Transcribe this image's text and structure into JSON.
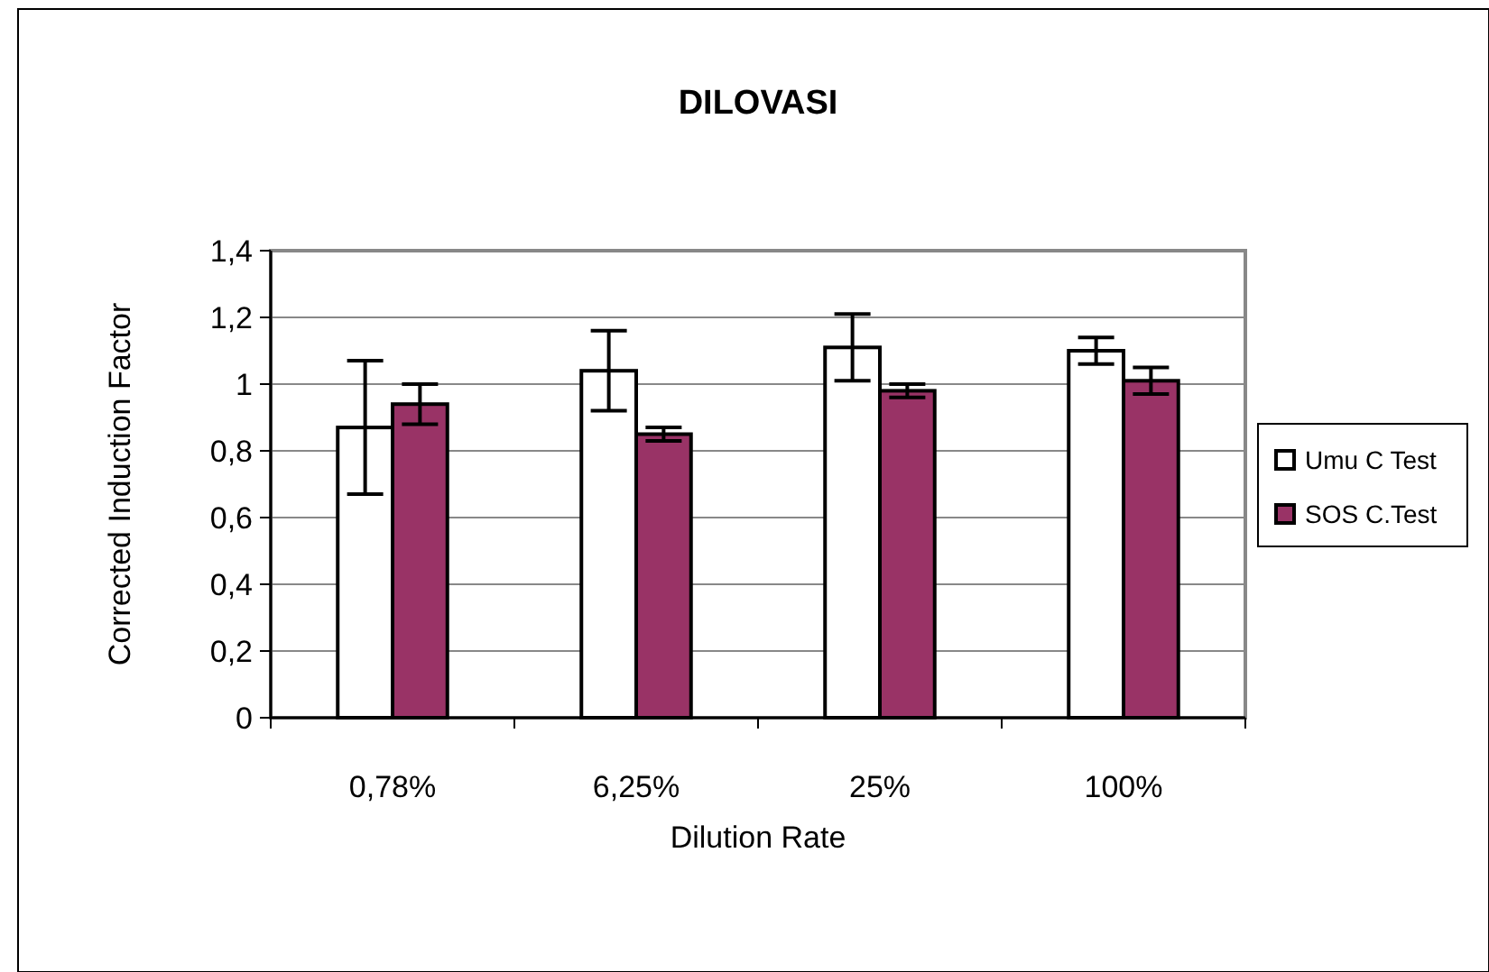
{
  "chart_data": {
    "type": "bar",
    "title": "DILOVASI",
    "xlabel": "Dilution Rate",
    "ylabel": "Corrected Induction Factor",
    "categories": [
      "0,78%",
      "6,25%",
      "25%",
      "100%"
    ],
    "series": [
      {
        "name": "Umu C Test",
        "color": "#ffffff",
        "values": [
          0.87,
          1.04,
          1.11,
          1.1
        ],
        "errors": [
          0.2,
          0.12,
          0.1,
          0.04
        ]
      },
      {
        "name": "SOS C.Test",
        "color": "#993366",
        "values": [
          0.94,
          0.85,
          0.98,
          1.01
        ],
        "errors": [
          0.06,
          0.02,
          0.02,
          0.04
        ]
      }
    ],
    "ylim": [
      0,
      1.4
    ],
    "yticks": [
      0,
      {
        "value": 0.2,
        "label": "0,2"
      },
      {
        "value": 0.4,
        "label": "0,4"
      },
      {
        "value": 0.6,
        "label": "0,6"
      },
      {
        "value": 0.8,
        "label": "0,8"
      },
      1,
      {
        "value": 1.2,
        "label": "1,2"
      },
      {
        "value": 1.4,
        "label": "1,4"
      }
    ],
    "grid": "y",
    "legend": "right"
  }
}
